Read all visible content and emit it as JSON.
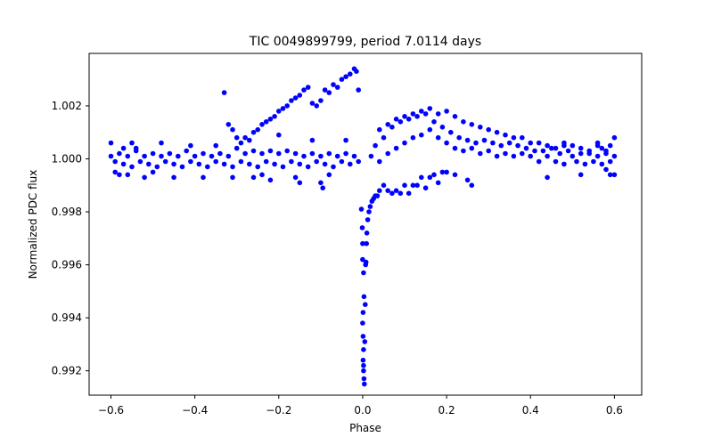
{
  "chart_data": {
    "type": "scatter",
    "title": "TIC 0049899799, period 7.0114 days",
    "xlabel": "Phase",
    "ylabel": "Normalized PDC flux",
    "xlim": [
      -0.652,
      0.665
    ],
    "ylim": [
      0.99108,
      1.00398
    ],
    "xticks": [
      {
        "value": -0.6,
        "label": "−0.6"
      },
      {
        "value": -0.4,
        "label": "−0.4"
      },
      {
        "value": -0.2,
        "label": "−0.2"
      },
      {
        "value": 0.0,
        "label": "0.0"
      },
      {
        "value": 0.2,
        "label": "0.2"
      },
      {
        "value": 0.4,
        "label": "0.4"
      },
      {
        "value": 0.6,
        "label": "0.6"
      }
    ],
    "yticks": [
      {
        "value": 0.992,
        "label": "0.992"
      },
      {
        "value": 0.994,
        "label": "0.994"
      },
      {
        "value": 0.996,
        "label": "0.996"
      },
      {
        "value": 0.998,
        "label": "0.998"
      },
      {
        "value": 1.0,
        "label": "1.000"
      },
      {
        "value": 1.002,
        "label": "1.002"
      }
    ],
    "grid": false,
    "series": [
      {
        "name": "flux",
        "color": "#0000ff",
        "marker": "circle",
        "points": [
          [
            -0.6,
            1.0001
          ],
          [
            -0.59,
            0.9999
          ],
          [
            -0.58,
            1.0002
          ],
          [
            -0.57,
            0.9998
          ],
          [
            -0.56,
            1.0001
          ],
          [
            -0.55,
            0.9997
          ],
          [
            -0.54,
            1.0003
          ],
          [
            -0.53,
            0.9999
          ],
          [
            -0.52,
            1.0001
          ],
          [
            -0.51,
            0.9998
          ],
          [
            -0.5,
            1.0002
          ],
          [
            -0.49,
            0.9997
          ],
          [
            -0.48,
            1.0001
          ],
          [
            -0.47,
            0.9999
          ],
          [
            -0.46,
            1.0002
          ],
          [
            -0.45,
            0.9998
          ],
          [
            -0.44,
            1.0001
          ],
          [
            -0.43,
            0.9997
          ],
          [
            -0.42,
            1.0003
          ],
          [
            -0.41,
            0.9999
          ],
          [
            -0.4,
            1.0001
          ],
          [
            -0.39,
            0.9998
          ],
          [
            -0.38,
            1.0002
          ],
          [
            -0.37,
            0.9997
          ],
          [
            -0.36,
            1.0001
          ],
          [
            -0.35,
            0.9999
          ],
          [
            -0.34,
            1.0002
          ],
          [
            -0.33,
            0.9998
          ],
          [
            -0.32,
            1.0001
          ],
          [
            -0.31,
            0.9997
          ],
          [
            -0.3,
            1.0004
          ],
          [
            -0.29,
            0.9999
          ],
          [
            -0.28,
            1.0002
          ],
          [
            -0.27,
            0.9998
          ],
          [
            -0.26,
            1.0003
          ],
          [
            -0.25,
            0.9997
          ],
          [
            -0.24,
            1.0002
          ],
          [
            -0.23,
            0.9999
          ],
          [
            -0.22,
            1.0003
          ],
          [
            -0.21,
            0.9998
          ],
          [
            -0.2,
            1.0002
          ],
          [
            -0.19,
            0.9997
          ],
          [
            -0.18,
            1.0003
          ],
          [
            -0.17,
            0.9999
          ],
          [
            -0.16,
            1.0002
          ],
          [
            -0.15,
            0.9998
          ],
          [
            -0.14,
            1.0001
          ],
          [
            -0.13,
            0.9997
          ],
          [
            -0.12,
            1.0002
          ],
          [
            -0.11,
            0.9999
          ],
          [
            -0.1,
            1.0001
          ],
          [
            -0.09,
            0.9998
          ],
          [
            -0.08,
            1.0002
          ],
          [
            -0.07,
            0.9997
          ],
          [
            -0.06,
            1.0001
          ],
          [
            -0.05,
            0.9999
          ],
          [
            -0.04,
            1.0002
          ],
          [
            -0.03,
            0.9998
          ],
          [
            -0.02,
            1.0001
          ],
          [
            -0.01,
            0.9999
          ],
          [
            0.02,
            1.0001
          ],
          [
            0.03,
            1.0005
          ],
          [
            0.04,
            0.9999
          ],
          [
            0.05,
            1.0008
          ],
          [
            0.06,
            1.0002
          ],
          [
            0.07,
            1.0012
          ],
          [
            0.08,
            1.0004
          ],
          [
            0.09,
            1.0014
          ],
          [
            0.1,
            1.0006
          ],
          [
            0.11,
            1.0015
          ],
          [
            0.12,
            1.0008
          ],
          [
            0.13,
            1.0016
          ],
          [
            0.14,
            1.0009
          ],
          [
            0.15,
            1.0017
          ],
          [
            0.16,
            1.0011
          ],
          [
            0.17,
            1.0014
          ],
          [
            0.18,
            1.0008
          ],
          [
            0.19,
            1.0012
          ],
          [
            0.2,
            1.0006
          ],
          [
            0.21,
            1.001
          ],
          [
            0.22,
            1.0004
          ],
          [
            0.23,
            1.0008
          ],
          [
            0.24,
            1.0003
          ],
          [
            0.25,
            1.0007
          ],
          [
            0.26,
            1.0004
          ],
          [
            0.27,
            1.0006
          ],
          [
            0.28,
            1.0002
          ],
          [
            0.29,
            1.0007
          ],
          [
            0.3,
            1.0003
          ],
          [
            0.31,
            1.0006
          ],
          [
            0.32,
            1.0001
          ],
          [
            0.33,
            1.0005
          ],
          [
            0.34,
            1.0002
          ],
          [
            0.35,
            1.0006
          ],
          [
            0.36,
            1.0001
          ],
          [
            0.37,
            1.0005
          ],
          [
            0.38,
            1.0002
          ],
          [
            0.39,
            1.0004
          ],
          [
            0.4,
            1.0001
          ],
          [
            0.41,
            1.0003
          ],
          [
            0.42,
            0.9999
          ],
          [
            0.43,
            1.0003
          ],
          [
            0.44,
            1.0001
          ],
          [
            0.45,
            1.0004
          ],
          [
            0.46,
            0.9999
          ],
          [
            0.47,
            1.0002
          ],
          [
            0.48,
            0.9998
          ],
          [
            0.49,
            1.0003
          ],
          [
            0.5,
            1.0001
          ],
          [
            0.51,
            0.9999
          ],
          [
            0.52,
            1.0002
          ],
          [
            0.53,
            0.9998
          ],
          [
            0.54,
            1.0002
          ],
          [
            0.55,
            0.9999
          ],
          [
            0.56,
            1.0001
          ],
          [
            0.57,
            0.9998
          ],
          [
            0.58,
            1.0002
          ],
          [
            0.59,
            0.9999
          ],
          [
            0.6,
            1.0001
          ],
          [
            -0.58,
            0.9994
          ],
          [
            -0.55,
            1.0006
          ],
          [
            -0.52,
            0.9993
          ],
          [
            -0.48,
            1.0006
          ],
          [
            -0.45,
            0.9993
          ],
          [
            -0.41,
            1.0005
          ],
          [
            -0.38,
            0.9993
          ],
          [
            -0.35,
            1.0005
          ],
          [
            -0.31,
            0.9993
          ],
          [
            -0.28,
            1.0008
          ],
          [
            -0.24,
            0.9994
          ],
          [
            -0.2,
            1.0009
          ],
          [
            -0.16,
            0.9993
          ],
          [
            -0.12,
            1.0007
          ],
          [
            -0.08,
            0.9994
          ],
          [
            -0.04,
            1.0007
          ],
          [
            0.44,
            0.9993
          ],
          [
            0.48,
            1.0005
          ],
          [
            0.52,
            0.9994
          ],
          [
            0.56,
            1.0006
          ],
          [
            -0.5,
            0.9995
          ],
          [
            -0.26,
            0.9993
          ],
          [
            -0.22,
            0.9992
          ],
          [
            -0.15,
            0.9991
          ],
          [
            -0.1,
            0.9991
          ],
          [
            -0.095,
            0.9989
          ],
          [
            -0.33,
            1.0025
          ],
          [
            -0.32,
            1.0013
          ],
          [
            -0.31,
            1.0011
          ],
          [
            -0.3,
            1.0008
          ],
          [
            -0.29,
            1.0006
          ],
          [
            -0.27,
            1.0007
          ],
          [
            -0.26,
            1.001
          ],
          [
            -0.25,
            1.0011
          ],
          [
            -0.24,
            1.0013
          ],
          [
            -0.23,
            1.0014
          ],
          [
            -0.22,
            1.0015
          ],
          [
            -0.21,
            1.0016
          ],
          [
            -0.2,
            1.0018
          ],
          [
            -0.19,
            1.0019
          ],
          [
            -0.18,
            1.002
          ],
          [
            -0.17,
            1.0022
          ],
          [
            -0.16,
            1.0023
          ],
          [
            -0.15,
            1.0024
          ],
          [
            -0.14,
            1.0026
          ],
          [
            -0.13,
            1.0027
          ],
          [
            -0.12,
            1.0021
          ],
          [
            -0.11,
            1.002
          ],
          [
            -0.1,
            1.0022
          ],
          [
            -0.09,
            1.0026
          ],
          [
            -0.08,
            1.0025
          ],
          [
            -0.07,
            1.0028
          ],
          [
            -0.06,
            1.0027
          ],
          [
            -0.05,
            1.003
          ],
          [
            -0.04,
            1.0031
          ],
          [
            -0.03,
            1.0032
          ],
          [
            -0.02,
            1.0034
          ],
          [
            -0.015,
            1.0033
          ],
          [
            -0.01,
            1.0026
          ],
          [
            -0.003,
            0.9981
          ],
          [
            -0.001,
            0.9974
          ],
          [
            0.0,
            0.9968
          ],
          [
            0.0,
            0.9962
          ],
          [
            0.002,
            0.9957
          ],
          [
            0.003,
            0.9948
          ],
          [
            0.001,
            0.9942
          ],
          [
            0.0,
            0.9938
          ],
          [
            0.001,
            0.9933
          ],
          [
            0.002,
            0.9928
          ],
          [
            0.001,
            0.9924
          ],
          [
            0.002,
            0.992
          ],
          [
            0.003,
            0.9917
          ],
          [
            0.004,
            0.9915
          ],
          [
            0.002,
            0.9922
          ],
          [
            0.005,
            0.9931
          ],
          [
            0.006,
            0.9945
          ],
          [
            0.007,
            0.996
          ],
          [
            0.008,
            0.9961
          ],
          [
            0.009,
            0.9968
          ],
          [
            0.01,
            0.9972
          ],
          [
            0.012,
            0.9977
          ],
          [
            0.015,
            0.998
          ],
          [
            0.018,
            0.9982
          ],
          [
            0.022,
            0.9984
          ],
          [
            0.026,
            0.9985
          ],
          [
            0.03,
            0.9986
          ],
          [
            0.035,
            0.9986
          ],
          [
            0.04,
            0.9988
          ],
          [
            0.05,
            0.999
          ],
          [
            0.06,
            0.9988
          ],
          [
            0.07,
            0.9987
          ],
          [
            0.08,
            0.9988
          ],
          [
            0.09,
            0.9987
          ],
          [
            0.1,
            0.999
          ],
          [
            0.11,
            0.9987
          ],
          [
            0.12,
            0.999
          ],
          [
            0.13,
            0.999
          ],
          [
            0.14,
            0.9993
          ],
          [
            0.15,
            0.9989
          ],
          [
            0.16,
            0.9993
          ],
          [
            0.17,
            0.9994
          ],
          [
            0.18,
            0.9991
          ],
          [
            0.19,
            0.9995
          ],
          [
            0.2,
            0.9995
          ],
          [
            0.22,
            0.9994
          ],
          [
            0.25,
            0.9992
          ],
          [
            0.26,
            0.999
          ],
          [
            0.04,
            1.0011
          ],
          [
            0.06,
            1.0013
          ],
          [
            0.08,
            1.0015
          ],
          [
            0.1,
            1.0016
          ],
          [
            0.12,
            1.0017
          ],
          [
            0.14,
            1.0018
          ],
          [
            0.16,
            1.0019
          ],
          [
            0.18,
            1.0017
          ],
          [
            0.2,
            1.0018
          ],
          [
            0.22,
            1.0016
          ],
          [
            0.24,
            1.0014
          ],
          [
            0.26,
            1.0013
          ],
          [
            0.28,
            1.0012
          ],
          [
            0.3,
            1.0011
          ],
          [
            0.32,
            1.001
          ],
          [
            0.34,
            1.0009
          ],
          [
            0.36,
            1.0008
          ],
          [
            0.38,
            1.0008
          ],
          [
            0.4,
            1.0006
          ],
          [
            0.42,
            1.0006
          ],
          [
            0.44,
            1.0005
          ],
          [
            0.46,
            1.0004
          ],
          [
            0.48,
            1.0006
          ],
          [
            0.5,
            1.0005
          ],
          [
            0.52,
            1.0004
          ],
          [
            0.54,
            1.0003
          ],
          [
            0.56,
            1.0005
          ],
          [
            0.58,
            1.0003
          ],
          [
            0.6,
            1.0008
          ],
          [
            -0.6,
            1.0006
          ],
          [
            -0.59,
            0.9995
          ],
          [
            -0.57,
            1.0004
          ],
          [
            -0.56,
            0.9994
          ],
          [
            -0.54,
            1.0004
          ],
          [
            0.59,
            0.9994
          ],
          [
            0.6,
            0.9994
          ],
          [
            0.59,
            1.0005
          ],
          [
            0.58,
            0.9996
          ],
          [
            0.57,
            1.0004
          ]
        ]
      }
    ]
  }
}
